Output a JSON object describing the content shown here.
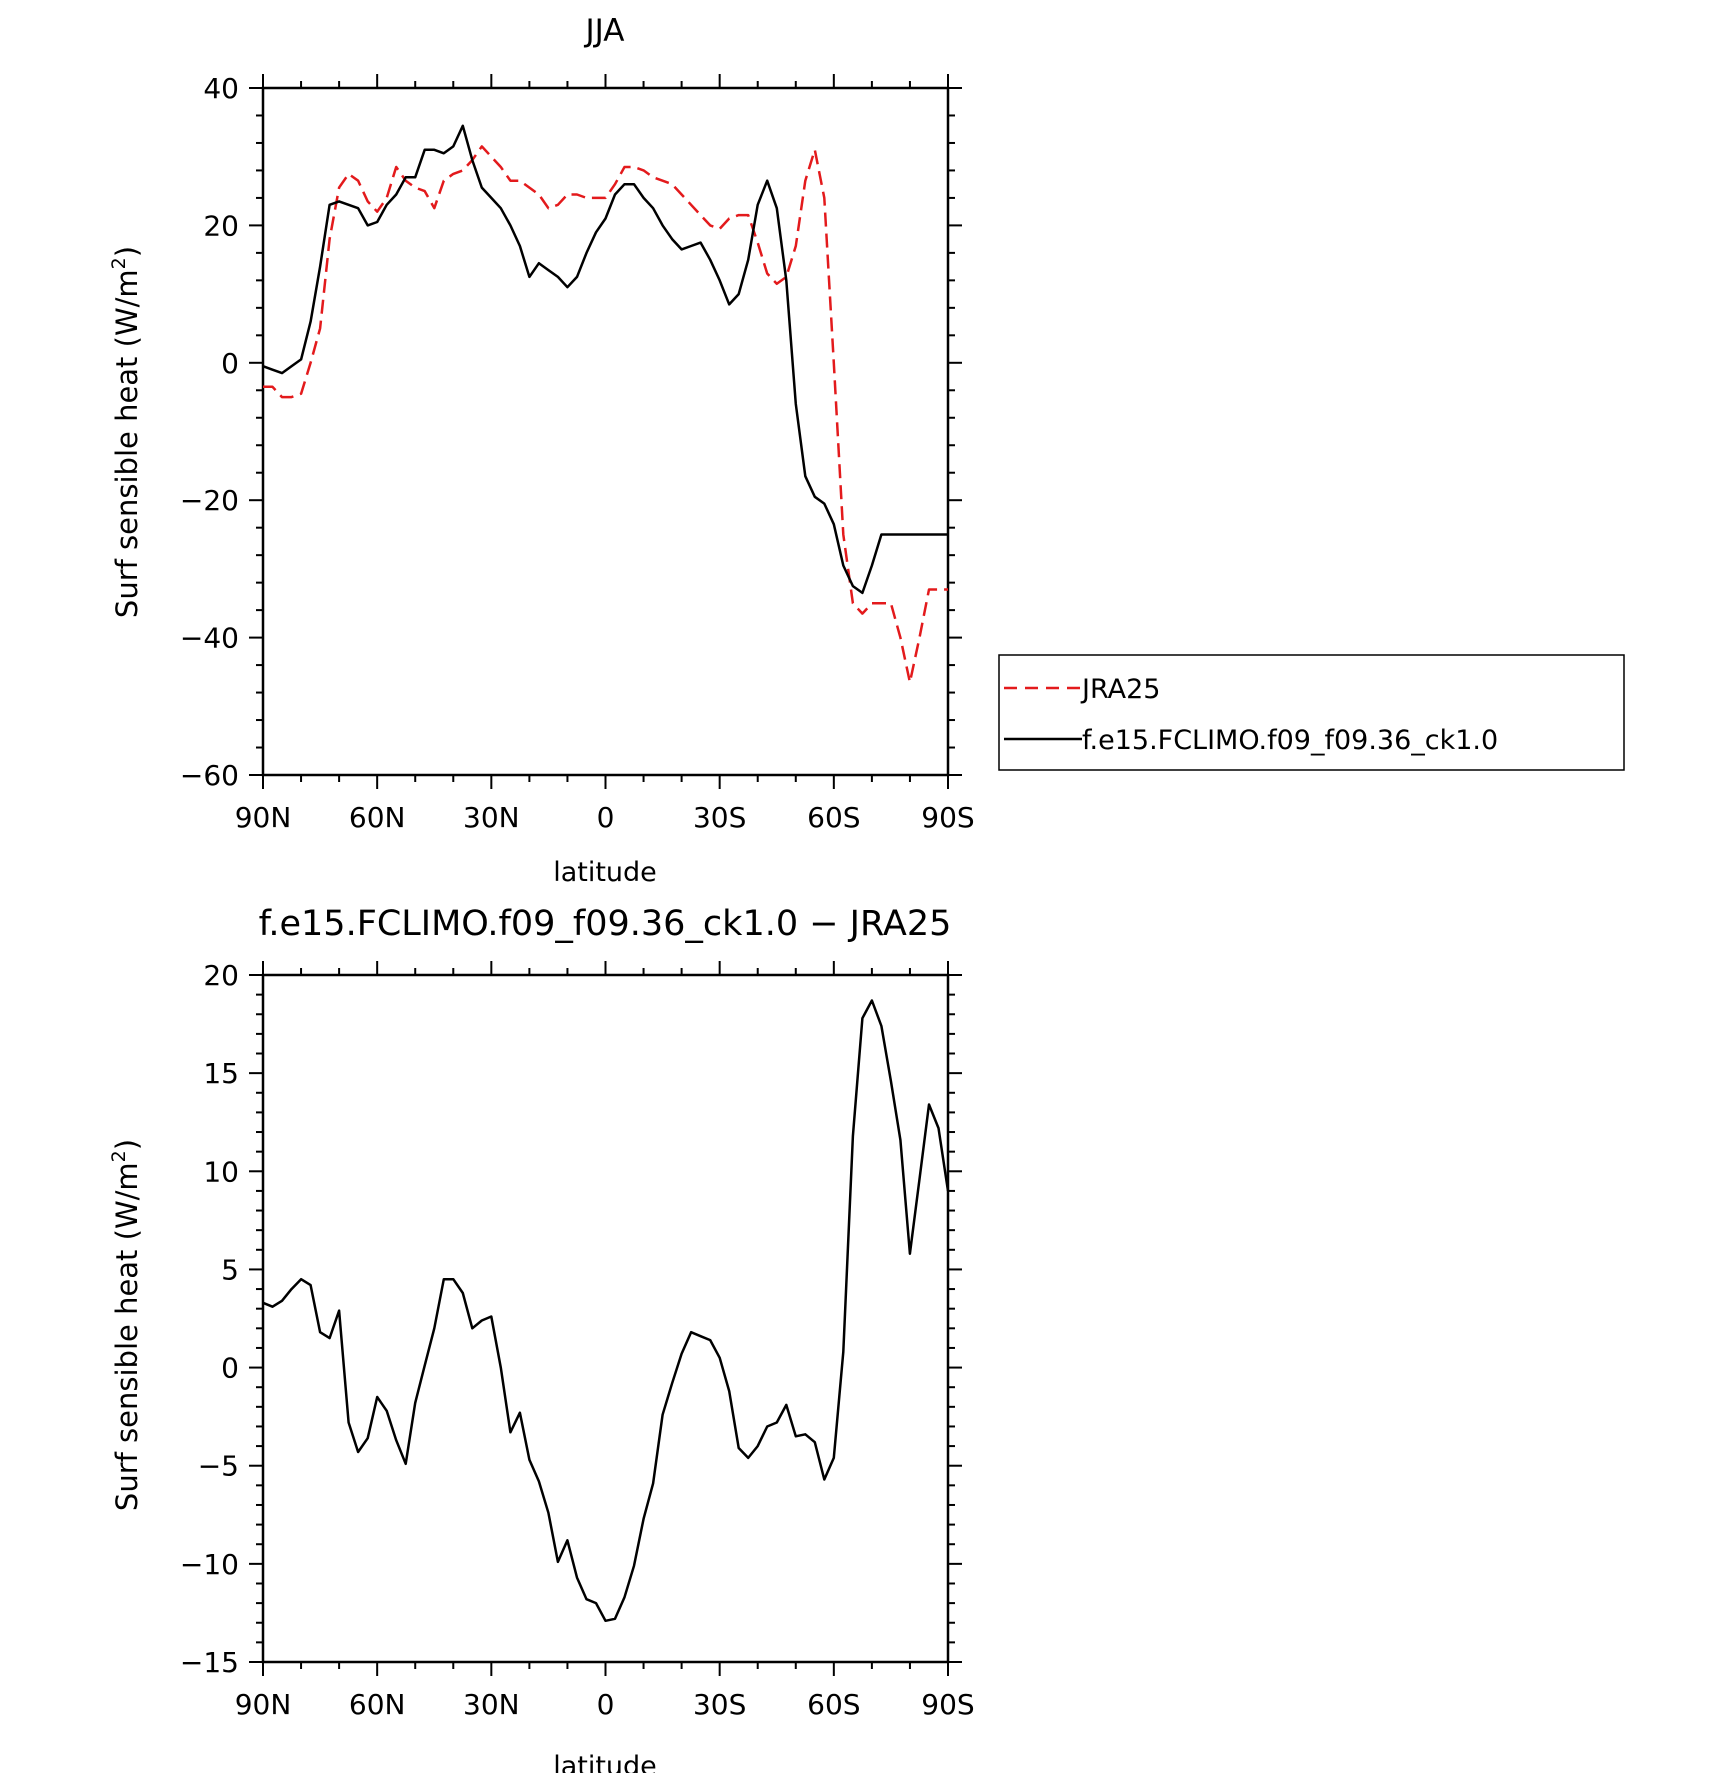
{
  "chart_data": [
    {
      "type": "line",
      "title": "JJA",
      "xlabel": "latitude",
      "ylabel": "Surf sensible heat (W/m²)",
      "ylabel_main": "Surf sensible heat (W/m",
      "ylabel_sup": "2",
      "ylabel_close": ")",
      "xlim": [
        90,
        -90
      ],
      "ylim": [
        -60,
        40
      ],
      "x_ticks": [
        90,
        60,
        30,
        0,
        -30,
        -60,
        -90
      ],
      "x_tick_labels": [
        "90N",
        "60N",
        "30N",
        "0",
        "30S",
        "60S",
        "90S"
      ],
      "y_ticks": [
        -60,
        -40,
        -20,
        0,
        20,
        40
      ],
      "y_tick_labels": [
        "−60",
        "−40",
        "−20",
        "0",
        "20",
        "40"
      ],
      "legend_placement": "right",
      "series": [
        {
          "name": "JRA25",
          "color": "#e31a1c",
          "dash": "dashed",
          "x": [
            90,
            87.5,
            85,
            82.5,
            80,
            77.5,
            75,
            72.5,
            70,
            67.5,
            65,
            62.5,
            60,
            57.5,
            55,
            52.5,
            50,
            47.5,
            45,
            42.5,
            40,
            37.5,
            35,
            32.5,
            30,
            27.5,
            25,
            22.5,
            20,
            17.5,
            15,
            12.5,
            10,
            7.5,
            5,
            2.5,
            0,
            -2.5,
            -5,
            -7.5,
            -10,
            -12.5,
            -15,
            -17.5,
            -20,
            -22.5,
            -25,
            -27.5,
            -30,
            -32.5,
            -35,
            -37.5,
            -40,
            -42.5,
            -45,
            -47.5,
            -50,
            -52.5,
            -55,
            -57.5,
            -60,
            -62.5,
            -65,
            -67.5,
            -70,
            -72.5,
            -75,
            -77.5,
            -80,
            -82.5,
            -85,
            -87.5,
            -90
          ],
          "values": [
            -3.5,
            -3.5,
            -5.0,
            -5.0,
            -4.5,
            0.0,
            5.0,
            18.0,
            25.5,
            27.5,
            26.5,
            23.5,
            22.0,
            24.0,
            28.5,
            26.5,
            25.5,
            25.0,
            22.5,
            26.5,
            27.5,
            28.0,
            29.5,
            31.5,
            30.0,
            28.5,
            26.5,
            26.5,
            25.5,
            24.5,
            22.5,
            23.0,
            24.5,
            24.5,
            24.0,
            24.0,
            24.0,
            26.0,
            28.5,
            28.5,
            28.0,
            27.0,
            26.5,
            26.0,
            24.5,
            23.0,
            21.5,
            20.0,
            19.5,
            21.0,
            21.5,
            21.5,
            17.5,
            13.0,
            11.5,
            12.5,
            17.0,
            26.5,
            31.0,
            24.0,
            0.0,
            -25.0,
            -35.0,
            -36.5,
            -35.0,
            -35.0,
            -35.0,
            -40.0,
            -46.5,
            -40.0,
            -33.0,
            -33.0,
            -33.0
          ],
          "note": "values listed for 90N..90S at 2.5 deg"
        },
        {
          "name": "f.e15.FCLIMO.f09_f09.36_ck1.0",
          "color": "#000000",
          "dash": "solid",
          "x": [
            90,
            87.5,
            85,
            82.5,
            80,
            77.5,
            75,
            72.5,
            70,
            67.5,
            65,
            62.5,
            60,
            57.5,
            55,
            52.5,
            50,
            47.5,
            45,
            42.5,
            40,
            37.5,
            35,
            32.5,
            30,
            27.5,
            25,
            22.5,
            20,
            17.5,
            15,
            12.5,
            10,
            7.5,
            5,
            2.5,
            0,
            -2.5,
            -5,
            -7.5,
            -10,
            -12.5,
            -15,
            -17.5,
            -20,
            -22.5,
            -25,
            -27.5,
            -30,
            -32.5,
            -35,
            -37.5,
            -40,
            -42.5,
            -45,
            -47.5,
            -50,
            -52.5,
            -55,
            -57.5,
            -60,
            -62.5,
            -65,
            -67.5,
            -70,
            -72.5,
            -75,
            -77.5,
            -80,
            -82.5,
            -85,
            -87.5,
            -90
          ],
          "values": [
            -0.5,
            -1.0,
            -1.5,
            -0.5,
            0.5,
            6.0,
            14.0,
            23.0,
            23.5,
            23.0,
            22.5,
            20.0,
            20.5,
            23.0,
            24.5,
            27.0,
            27.0,
            31.0,
            31.0,
            30.5,
            31.5,
            34.5,
            29.5,
            25.5,
            24.0,
            22.5,
            20.0,
            17.0,
            12.5,
            14.5,
            13.5,
            12.5,
            11.0,
            12.5,
            16.0,
            19.0,
            21.0,
            24.5,
            26.0,
            26.0,
            24.0,
            22.5,
            20.0,
            18.0,
            16.5,
            17.0,
            17.5,
            15.0,
            12.0,
            8.5,
            10.0,
            15.0,
            23.0,
            26.5,
            22.5,
            12.0,
            -6.0,
            -16.5,
            -19.5,
            -20.5,
            -23.5,
            -29.5,
            -32.5,
            -33.5,
            -29.5,
            -25.0,
            -25.0,
            -25.0,
            -25.0,
            -25.0,
            -25.0,
            -25.0,
            -25.0
          ],
          "note": "values listed for 90N..90S at 2.5 deg"
        }
      ]
    },
    {
      "type": "line",
      "title": "f.e15.FCLIMO.f09_f09.36_ck1.0 − JRA25",
      "xlabel": "latitude",
      "ylabel": "Surf sensible heat (W/m²)",
      "ylabel_main": "Surf sensible heat (W/m",
      "ylabel_sup": "2",
      "ylabel_close": ")",
      "xlim": [
        90,
        -90
      ],
      "ylim": [
        -15,
        20
      ],
      "x_ticks": [
        90,
        60,
        30,
        0,
        -30,
        -60,
        -90
      ],
      "x_tick_labels": [
        "90N",
        "60N",
        "30N",
        "0",
        "30S",
        "60S",
        "90S"
      ],
      "y_ticks": [
        -15,
        -10,
        -5,
        0,
        5,
        10,
        15,
        20
      ],
      "y_tick_labels": [
        "−15",
        "−10",
        "−5",
        "0",
        "5",
        "10",
        "15",
        "20"
      ],
      "series": [
        {
          "color": "#000000",
          "dash": "solid",
          "x": [
            90,
            87.5,
            85,
            82.5,
            80,
            77.5,
            75,
            72.5,
            70,
            67.5,
            65,
            62.5,
            60,
            57.5,
            55,
            52.5,
            50,
            47.5,
            45,
            42.5,
            40,
            37.5,
            35,
            32.5,
            30,
            27.5,
            25,
            22.5,
            20,
            17.5,
            15,
            12.5,
            10,
            7.5,
            5,
            2.5,
            0,
            -2.5,
            -5,
            -7.5,
            -10,
            -12.5,
            -15,
            -17.5,
            -20,
            -22.5,
            -25,
            -27.5,
            -30,
            -32.5,
            -35,
            -37.5,
            -40,
            -42.5,
            -45,
            -47.5,
            -50,
            -52.5,
            -55,
            -57.5,
            -60,
            -62.5,
            -65,
            -67.5,
            -70,
            -72.5,
            -75,
            -77.5,
            -80,
            -82.5,
            -85,
            -87.5,
            -90
          ],
          "values": [
            3.3,
            3.1,
            3.4,
            4.0,
            4.5,
            4.2,
            1.8,
            1.5,
            2.9,
            -2.8,
            -4.3,
            -3.6,
            -1.5,
            -2.2,
            -3.7,
            -4.9,
            -1.8,
            0.1,
            2.0,
            4.5,
            4.5,
            3.8,
            2.0,
            2.4,
            2.6,
            0.0,
            -3.3,
            -2.3,
            -4.7,
            -5.8,
            -7.4,
            -9.9,
            -8.8,
            -10.7,
            -11.8,
            -12.0,
            -12.9,
            -12.8,
            -11.7,
            -10.1,
            -7.7,
            -5.9,
            -2.4,
            -0.8,
            0.7,
            1.8,
            1.6,
            1.4,
            0.5,
            -1.2,
            -4.1,
            -4.6,
            -4.0,
            -3.0,
            -2.8,
            -1.9,
            -3.5,
            -3.4,
            -3.8,
            -5.7,
            -4.6,
            0.8,
            11.8,
            17.8,
            18.7,
            17.4,
            14.6,
            11.6,
            5.8,
            9.6,
            13.4,
            12.2,
            9.0
          ]
        }
      ]
    }
  ]
}
